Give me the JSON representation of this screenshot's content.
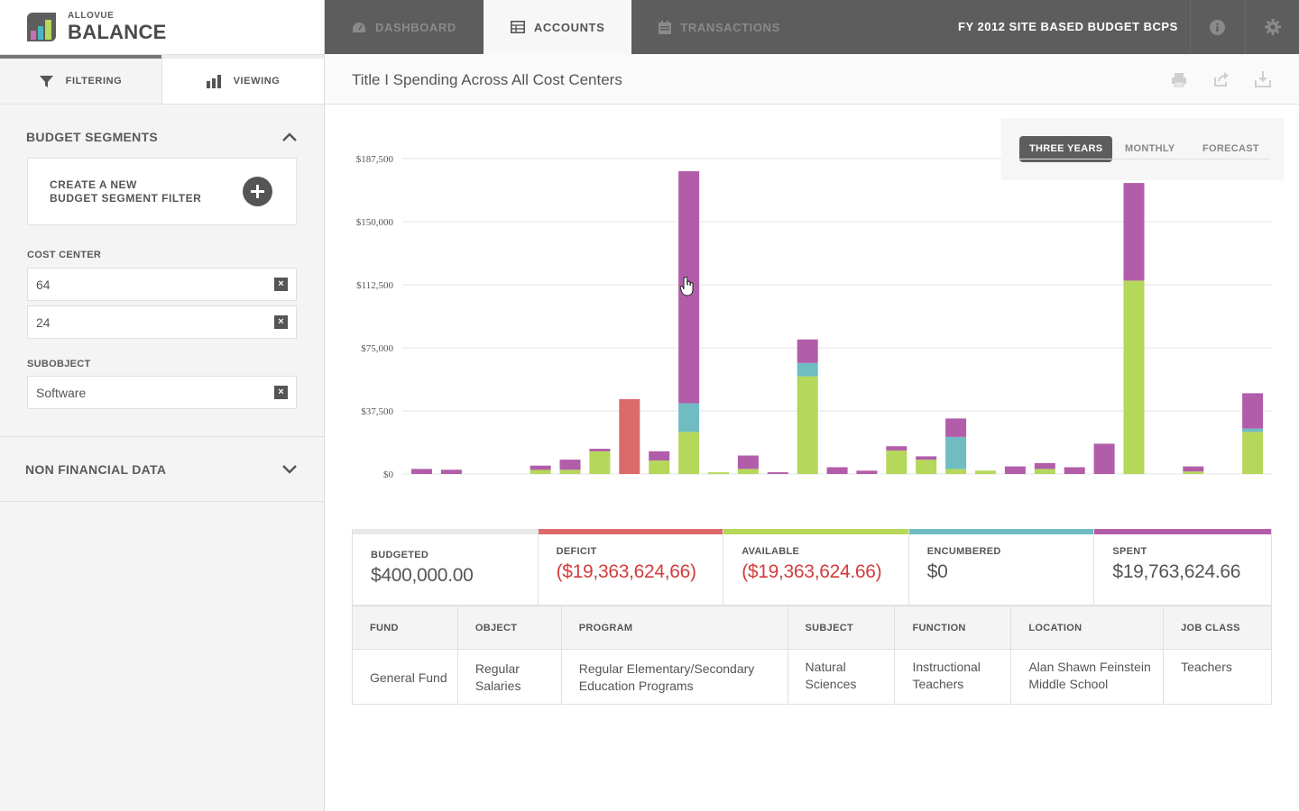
{
  "brand": {
    "small": "ALLOVUE",
    "big": "BALANCE"
  },
  "sidebar": {
    "tabs": [
      {
        "label": "FILTERING"
      },
      {
        "label": "VIEWING"
      }
    ],
    "budget_segments": {
      "title": "BUDGET SEGMENTS",
      "create_label": "CREATE A NEW\nBUDGET SEGMENT FILTER"
    },
    "cost_center": {
      "label": "COST CENTER",
      "values": [
        "64",
        "24"
      ]
    },
    "subobject": {
      "label": "SUBOBJECT",
      "values": [
        "Software"
      ]
    },
    "non_financial": {
      "title": "NON FINANCIAL DATA"
    }
  },
  "topnav": {
    "tabs": [
      {
        "label": "DASHBOARD",
        "icon": "dashboard-icon"
      },
      {
        "label": "ACCOUNTS",
        "icon": "table-icon"
      },
      {
        "label": "TRANSACTIONS",
        "icon": "calendar-icon"
      }
    ],
    "budget_title": "FY 2012 SITE BASED BUDGET BCPS"
  },
  "page": {
    "title": "Title I Spending Across All Cost Centers"
  },
  "range_buttons": [
    "THREE YEARS",
    "MONTHLY",
    "FORECAST"
  ],
  "chart_data": {
    "type": "bar",
    "stacked": true,
    "ylim": [
      0,
      187500
    ],
    "yticks": [
      0,
      37500,
      75000,
      112500,
      150000,
      187500
    ],
    "ytick_labels": [
      "$0",
      "$37,500",
      "$75,000",
      "$112,500",
      "$150,000",
      "$187,500"
    ],
    "grid": true,
    "colors": {
      "available": "#b5d75a",
      "encumbered": "#6fbcc3",
      "spent": "#b25da9",
      "deficit": "#dc6a6a"
    },
    "series": [
      {
        "key": "available",
        "values": [
          0,
          0,
          0,
          0,
          2500,
          2500,
          13500,
          0,
          8000,
          25000,
          1000,
          3000,
          0,
          58000,
          0,
          0,
          14000,
          8500,
          3000,
          2000,
          0,
          3000,
          0,
          0,
          115000,
          0,
          1500,
          0,
          25000
        ]
      },
      {
        "key": "encumbered",
        "values": [
          0,
          0,
          0,
          0,
          0,
          0,
          0,
          0,
          0,
          17000,
          0,
          0,
          0,
          8000,
          0,
          0,
          0,
          0,
          19000,
          0,
          0,
          0,
          0,
          0,
          0,
          0,
          0,
          0,
          2000
        ]
      },
      {
        "key": "spent",
        "values": [
          3000,
          2500,
          0,
          0,
          2500,
          6000,
          1500,
          0,
          5500,
          138000,
          0,
          8000,
          1000,
          14000,
          4000,
          2000,
          2500,
          2000,
          11000,
          0,
          4500,
          3500,
          4000,
          18000,
          58000,
          0,
          3000,
          0,
          21000
        ]
      },
      {
        "key": "deficit",
        "values": [
          0,
          0,
          0,
          0,
          0,
          0,
          0,
          44500,
          0,
          0,
          0,
          0,
          0,
          0,
          0,
          0,
          0,
          0,
          0,
          0,
          0,
          0,
          0,
          0,
          0,
          0,
          0,
          0,
          0
        ]
      }
    ]
  },
  "summary": [
    {
      "label": "BUDGETED",
      "value": "$400,000.00",
      "color": "#e8e8e8",
      "value_color": "#555555"
    },
    {
      "label": "DEFICIT",
      "value": "($19,363,624,66)",
      "color": "#dc6a6a",
      "value_color": "#d43c3c"
    },
    {
      "label": "AVAILABLE",
      "value": "($19,363,624.66)",
      "color": "#b5d75a",
      "value_color": "#d43c3c"
    },
    {
      "label": "ENCUMBERED",
      "value": "$0",
      "color": "#6fbcc3",
      "value_color": "#555555"
    },
    {
      "label": "SPENT",
      "value": "$19,763,624.66",
      "color": "#b25da9",
      "value_color": "#555555"
    }
  ],
  "table": {
    "headers": [
      "FUND",
      "OBJECT",
      "PROGRAM",
      "SUBJECT",
      "FUNCTION",
      "LOCATION",
      "JOB CLASS"
    ],
    "row": [
      "General Fund",
      "Regular Salaries",
      "Regular  Elementary/Secondary Education Programs",
      "Natural Sciences",
      "Instructional Teachers",
      "Alan Shawn Feinstein Middle School",
      "Teachers"
    ]
  }
}
